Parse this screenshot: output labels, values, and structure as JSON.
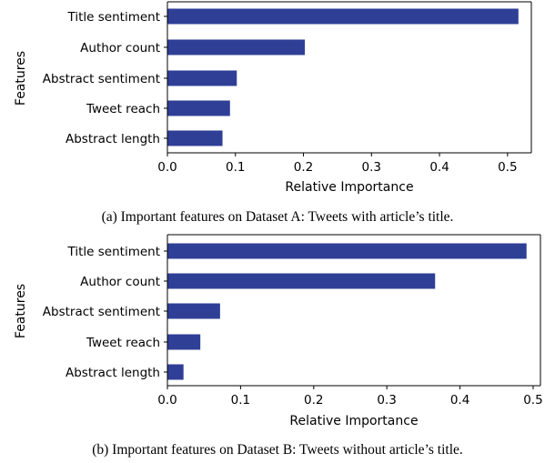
{
  "colors": {
    "bar": "#2f3f96",
    "axis": "#000000"
  },
  "chart_data": [
    {
      "type": "bar",
      "orientation": "horizontal",
      "categories": [
        "Title sentiment",
        "Author count",
        "Abstract sentiment",
        "Tweet reach",
        "Abstract length"
      ],
      "values": [
        0.516,
        0.202,
        0.102,
        0.092,
        0.081
      ],
      "xlabel": "Relative Importance",
      "ylabel": "Features",
      "xlim": [
        0,
        0.535
      ],
      "xticks": [
        0.0,
        0.1,
        0.2,
        0.3,
        0.4,
        0.5
      ],
      "xtick_labels": [
        "0.0",
        "0.1",
        "0.2",
        "0.3",
        "0.4",
        "0.5"
      ],
      "grid": false,
      "caption": "(a) Important features on Dataset A: Tweets with article’s title."
    },
    {
      "type": "bar",
      "orientation": "horizontal",
      "categories": [
        "Title sentiment",
        "Author count",
        "Abstract sentiment",
        "Tweet reach",
        "Abstract length"
      ],
      "values": [
        0.491,
        0.366,
        0.072,
        0.045,
        0.022
      ],
      "xlabel": "Relative Importance",
      "ylabel": "Features",
      "xlim": [
        0,
        0.51
      ],
      "xticks": [
        0.0,
        0.1,
        0.2,
        0.3,
        0.4,
        0.5
      ],
      "xtick_labels": [
        "0.0",
        "0.1",
        "0.2",
        "0.3",
        "0.4",
        "0.5"
      ],
      "grid": false,
      "caption": "(b) Important features on Dataset B: Tweets without article’s title."
    }
  ]
}
